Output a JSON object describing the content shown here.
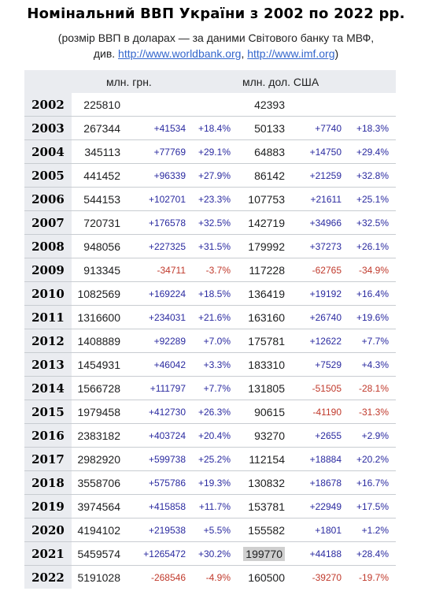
{
  "title": "Номінальний ВВП України з 2002 по 2022 рр.",
  "subtitle": {
    "line1": "(розмір ВВП в доларах — за даними Світового банку та МВФ,",
    "prefix": "див. ",
    "link1": "http://www.worldbank.org",
    "sep": ", ",
    "link2": "http://www.imf.org",
    "suffix": ")"
  },
  "table": {
    "col_uah": "млн. грн.",
    "col_usd": "млн. дол. США",
    "rows": [
      {
        "year": "2002",
        "uah": "225810",
        "uah_delta": "",
        "uah_pct": "",
        "usd": "42393",
        "usd_delta": "",
        "usd_pct": ""
      },
      {
        "year": "2003",
        "uah": "267344",
        "uah_delta": "+41534",
        "uah_pct": "+18.4%",
        "usd": "50133",
        "usd_delta": "+7740",
        "usd_pct": "+18.3%"
      },
      {
        "year": "2004",
        "uah": "345113",
        "uah_delta": "+77769",
        "uah_pct": "+29.1%",
        "usd": "64883",
        "usd_delta": "+14750",
        "usd_pct": "+29.4%"
      },
      {
        "year": "2005",
        "uah": "441452",
        "uah_delta": "+96339",
        "uah_pct": "+27.9%",
        "usd": "86142",
        "usd_delta": "+21259",
        "usd_pct": "+32.8%"
      },
      {
        "year": "2006",
        "uah": "544153",
        "uah_delta": "+102701",
        "uah_pct": "+23.3%",
        "usd": "107753",
        "usd_delta": "+21611",
        "usd_pct": "+25.1%"
      },
      {
        "year": "2007",
        "uah": "720731",
        "uah_delta": "+176578",
        "uah_pct": "+32.5%",
        "usd": "142719",
        "usd_delta": "+34966",
        "usd_pct": "+32.5%"
      },
      {
        "year": "2008",
        "uah": "948056",
        "uah_delta": "+227325",
        "uah_pct": "+31.5%",
        "usd": "179992",
        "usd_delta": "+37273",
        "usd_pct": "+26.1%"
      },
      {
        "year": "2009",
        "uah": "913345",
        "uah_delta": "-34711",
        "uah_pct": "-3.7%",
        "usd": "117228",
        "usd_delta": "-62765",
        "usd_pct": "-34.9%"
      },
      {
        "year": "2010",
        "uah": "1082569",
        "uah_delta": "+169224",
        "uah_pct": "+18.5%",
        "usd": "136419",
        "usd_delta": "+19192",
        "usd_pct": "+16.4%"
      },
      {
        "year": "2011",
        "uah": "1316600",
        "uah_delta": "+234031",
        "uah_pct": "+21.6%",
        "usd": "163160",
        "usd_delta": "+26740",
        "usd_pct": "+19.6%"
      },
      {
        "year": "2012",
        "uah": "1408889",
        "uah_delta": "+92289",
        "uah_pct": "+7.0%",
        "usd": "175781",
        "usd_delta": "+12622",
        "usd_pct": "+7.7%"
      },
      {
        "year": "2013",
        "uah": "1454931",
        "uah_delta": "+46042",
        "uah_pct": "+3.3%",
        "usd": "183310",
        "usd_delta": "+7529",
        "usd_pct": "+4.3%"
      },
      {
        "year": "2014",
        "uah": "1566728",
        "uah_delta": "+111797",
        "uah_pct": "+7.7%",
        "usd": "131805",
        "usd_delta": "-51505",
        "usd_pct": "-28.1%"
      },
      {
        "year": "2015",
        "uah": "1979458",
        "uah_delta": "+412730",
        "uah_pct": "+26.3%",
        "usd": "90615",
        "usd_delta": "-41190",
        "usd_pct": "-31.3%"
      },
      {
        "year": "2016",
        "uah": "2383182",
        "uah_delta": "+403724",
        "uah_pct": "+20.4%",
        "usd": "93270",
        "usd_delta": "+2655",
        "usd_pct": "+2.9%"
      },
      {
        "year": "2017",
        "uah": "2982920",
        "uah_delta": "+599738",
        "uah_pct": "+25.2%",
        "usd": "112154",
        "usd_delta": "+18884",
        "usd_pct": "+20.2%"
      },
      {
        "year": "2018",
        "uah": "3558706",
        "uah_delta": "+575786",
        "uah_pct": "+19.3%",
        "usd": "130832",
        "usd_delta": "+18678",
        "usd_pct": "+16.7%"
      },
      {
        "year": "2019",
        "uah": "3974564",
        "uah_delta": "+415858",
        "uah_pct": "+11.7%",
        "usd": "153781",
        "usd_delta": "+22949",
        "usd_pct": "+17.5%"
      },
      {
        "year": "2020",
        "uah": "4194102",
        "uah_delta": "+219538",
        "uah_pct": "+5.5%",
        "usd": "155582",
        "usd_delta": "+1801",
        "usd_pct": "+1.2%"
      },
      {
        "year": "2021",
        "uah": "5459574",
        "uah_delta": "+1265472",
        "uah_pct": "+30.2%",
        "usd": "199770",
        "usd_delta": "+44188",
        "usd_pct": "+28.4%",
        "usd_highlight": true
      },
      {
        "year": "2022",
        "uah": "5191028",
        "uah_delta": "-268546",
        "uah_pct": "-4.9%",
        "usd": "160500",
        "usd_delta": "-39270",
        "usd_pct": "-19.7%"
      }
    ]
  },
  "colors": {
    "positive": "#2a2aa0",
    "negative": "#c0392b",
    "header_bg": "#eaecf0",
    "link": "#3366cc",
    "highlight": "#cfcfcf"
  }
}
